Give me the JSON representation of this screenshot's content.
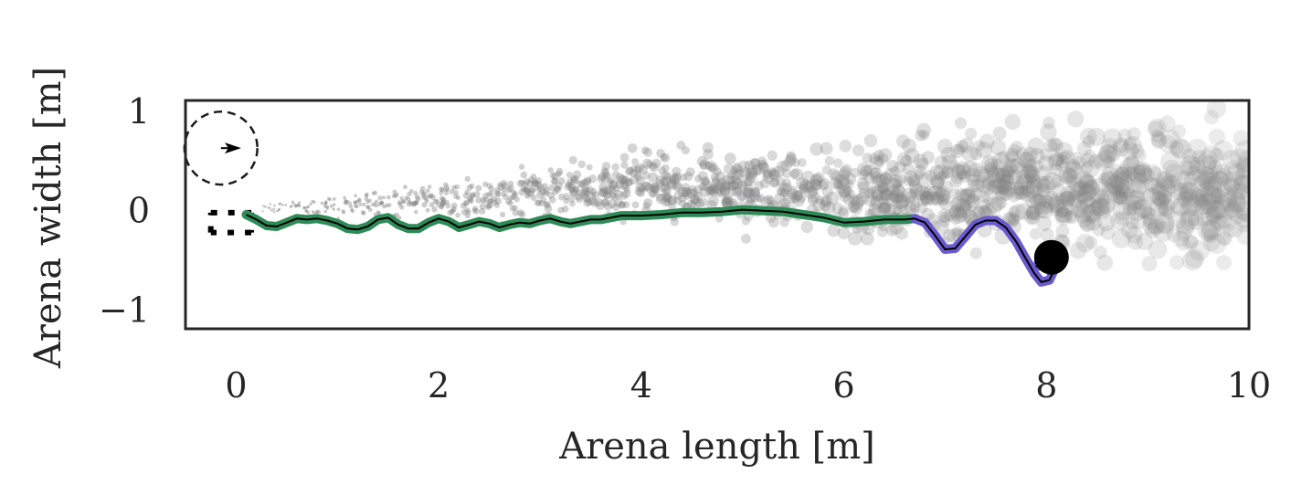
{
  "chart_data": {
    "type": "scatter",
    "title": "",
    "xlabel": "Arena length [m]",
    "ylabel": "Arena width [m]",
    "xlim": [
      -0.5,
      10
    ],
    "ylim": [
      -1.2,
      1.1
    ],
    "xticks": [
      0,
      2,
      4,
      6,
      8,
      10
    ],
    "xtick_labels": [
      "0",
      "2",
      "4",
      "6",
      "8",
      "10"
    ],
    "yticks": [
      1,
      0,
      -1
    ],
    "ytick_labels": [
      "1",
      "0",
      "−1"
    ],
    "grid": false,
    "legend": "none",
    "colors": {
      "cloud": "#808080",
      "trajectory_main": "#2e8b57",
      "trajectory_end": "#6a5acd",
      "centerline": "#000000",
      "endpoint": "#000000",
      "frame": "#262626"
    },
    "cloud_summary": {
      "x_range": [
        0.2,
        10
      ],
      "center_line": [
        [
          0.2,
          0.0
        ],
        [
          2,
          0.1
        ],
        [
          4,
          0.25
        ],
        [
          6,
          0.2
        ],
        [
          8,
          0.2
        ],
        [
          10,
          0.15
        ]
      ],
      "spread": [
        [
          0.2,
          0.03
        ],
        [
          2,
          0.12
        ],
        [
          4,
          0.22
        ],
        [
          6,
          0.3
        ],
        [
          8,
          0.38
        ],
        [
          10,
          0.45
        ]
      ]
    },
    "start_marker": {
      "circle_center": [
        -0.15,
        0.62
      ],
      "circle_radius": 0.36,
      "arrow_from": [
        -0.15,
        0.62
      ],
      "arrow_to": [
        0.05,
        0.62
      ],
      "square_corners": [
        [
          -0.25,
          -0.03
        ],
        [
          0.15,
          -0.03
        ],
        [
          -0.25,
          -0.23
        ],
        [
          0.15,
          -0.23
        ]
      ]
    },
    "series": [
      {
        "type": "line",
        "points": [
          [
            0.1,
            -0.05
          ],
          [
            0.2,
            -0.1
          ],
          [
            0.3,
            -0.16
          ],
          [
            0.4,
            -0.17
          ],
          [
            0.5,
            -0.13
          ],
          [
            0.6,
            -0.09
          ],
          [
            0.7,
            -0.1
          ],
          [
            0.8,
            -0.09
          ],
          [
            0.9,
            -0.11
          ],
          [
            1.0,
            -0.14
          ],
          [
            1.1,
            -0.19
          ],
          [
            1.2,
            -0.2
          ],
          [
            1.3,
            -0.17
          ],
          [
            1.4,
            -0.1
          ],
          [
            1.5,
            -0.08
          ],
          [
            1.6,
            -0.15
          ],
          [
            1.7,
            -0.19
          ],
          [
            1.8,
            -0.19
          ],
          [
            1.9,
            -0.13
          ],
          [
            2.0,
            -0.09
          ],
          [
            2.1,
            -0.12
          ],
          [
            2.2,
            -0.18
          ],
          [
            2.3,
            -0.15
          ],
          [
            2.4,
            -0.12
          ],
          [
            2.5,
            -0.14
          ],
          [
            2.6,
            -0.18
          ],
          [
            2.7,
            -0.15
          ],
          [
            2.8,
            -0.13
          ],
          [
            2.9,
            -0.14
          ],
          [
            3.0,
            -0.11
          ],
          [
            3.1,
            -0.09
          ],
          [
            3.2,
            -0.12
          ],
          [
            3.3,
            -0.14
          ],
          [
            3.4,
            -0.12
          ],
          [
            3.5,
            -0.1
          ],
          [
            3.6,
            -0.1
          ],
          [
            3.7,
            -0.08
          ],
          [
            3.8,
            -0.06
          ],
          [
            4.0,
            -0.06
          ],
          [
            4.2,
            -0.05
          ],
          [
            4.4,
            -0.03
          ],
          [
            4.6,
            -0.03
          ],
          [
            4.8,
            -0.02
          ],
          [
            5.0,
            0.0
          ],
          [
            5.2,
            -0.01
          ],
          [
            5.4,
            -0.02
          ],
          [
            5.6,
            -0.05
          ],
          [
            5.8,
            -0.08
          ],
          [
            6.0,
            -0.13
          ],
          [
            6.2,
            -0.12
          ],
          [
            6.4,
            -0.1
          ],
          [
            6.6,
            -0.1
          ],
          [
            6.7,
            -0.09
          ]
        ]
      },
      {
        "type": "line",
        "points": [
          [
            6.7,
            -0.09
          ],
          [
            6.8,
            -0.13
          ],
          [
            6.9,
            -0.26
          ],
          [
            7.0,
            -0.4
          ],
          [
            7.1,
            -0.39
          ],
          [
            7.2,
            -0.27
          ],
          [
            7.3,
            -0.15
          ],
          [
            7.4,
            -0.11
          ],
          [
            7.5,
            -0.11
          ],
          [
            7.6,
            -0.18
          ],
          [
            7.7,
            -0.32
          ],
          [
            7.8,
            -0.5
          ],
          [
            7.88,
            -0.64
          ],
          [
            7.95,
            -0.73
          ],
          [
            8.03,
            -0.71
          ],
          [
            8.08,
            -0.6
          ],
          [
            8.02,
            -0.5
          ],
          [
            7.93,
            -0.52
          ],
          [
            7.9,
            -0.58
          ]
        ]
      }
    ],
    "endpoint": [
      8.05,
      -0.48
    ]
  }
}
